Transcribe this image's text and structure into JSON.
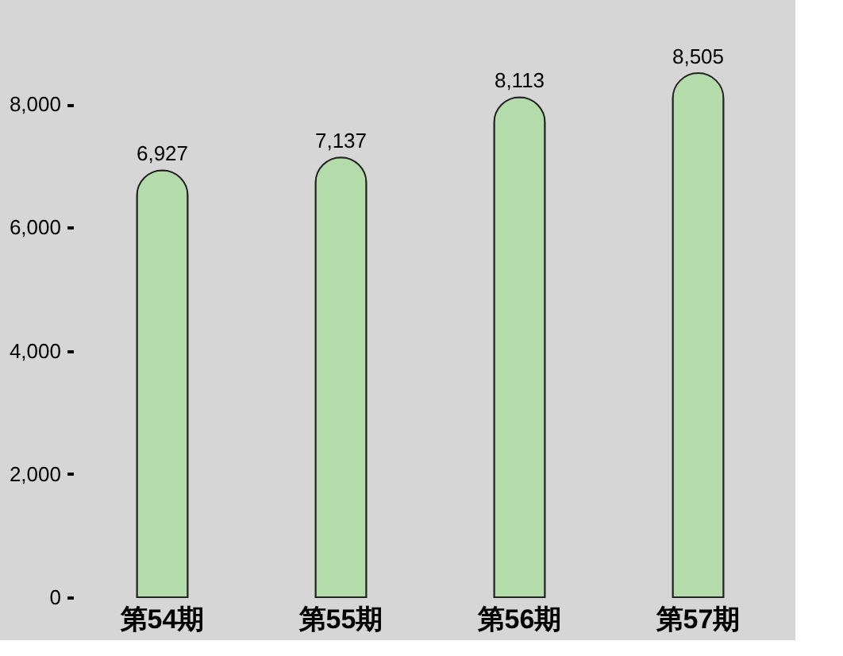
{
  "chart_data": {
    "type": "bar",
    "categories": [
      "第54期",
      "第55期",
      "第56期",
      "第57期"
    ],
    "values": [
      6927,
      7137,
      8113,
      8505
    ],
    "color": "#b3dcaa",
    "ylim": [
      0,
      8505
    ],
    "yticks": [
      {
        "value": 0,
        "label": "0"
      },
      {
        "value": 2000,
        "label": "2,000"
      },
      {
        "value": 4000,
        "label": "4,000"
      },
      {
        "value": 6000,
        "label": "6,000"
      },
      {
        "value": 8000,
        "label": "8,000"
      }
    ],
    "value_labels": [
      "6,927",
      "7,137",
      "8,113",
      "8,505"
    ],
    "grid": false
  }
}
